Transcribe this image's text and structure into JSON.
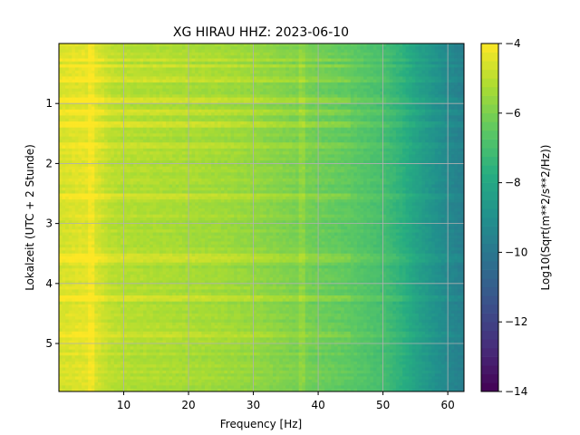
{
  "chart_data": {
    "type": "heatmap",
    "title": "XG HIRAU  HHZ: 2023-06-10",
    "xlabel": "Frequency [Hz]",
    "ylabel": "Lokalzeit (UTC + 2 Stunde)",
    "colorbar_label": "Log10(Sqrt(m**2/s**2/Hz))",
    "xlim": [
      0,
      62.5
    ],
    "ylim": [
      5.8,
      0.0
    ],
    "clim": [
      -14,
      -4
    ],
    "colormap": "viridis",
    "grid": true,
    "xticks": [
      10,
      20,
      30,
      40,
      50,
      60
    ],
    "yticks": [
      1,
      2,
      3,
      4,
      5
    ],
    "cbar_ticks": [
      -4,
      -6,
      -8,
      -10,
      -12,
      -14
    ],
    "xtick_labels": [
      "10",
      "20",
      "30",
      "40",
      "50",
      "60"
    ],
    "ytick_labels": [
      "1",
      "2",
      "3",
      "4",
      "5"
    ],
    "cbar_tick_labels": [
      "−4",
      "−6",
      "−8",
      "−10",
      "−12",
      "−14"
    ],
    "value_profile_vs_frequency": {
      "frequency_hz": [
        0,
        2,
        4,
        6,
        8,
        10,
        15,
        20,
        25,
        30,
        35,
        40,
        45,
        50,
        53,
        55,
        58,
        60,
        62.5
      ],
      "log10_psd": [
        -4.6,
        -4.5,
        -4.4,
        -4.6,
        -5.0,
        -5.1,
        -5.2,
        -5.3,
        -5.4,
        -5.6,
        -5.9,
        -6.2,
        -6.5,
        -7.0,
        -7.6,
        -8.2,
        -8.9,
        -9.3,
        -9.7
      ]
    },
    "bright_bands_hours": [
      0.28,
      0.38,
      0.6,
      0.95,
      1.15,
      1.35,
      1.7,
      2.55,
      3.55,
      3.62,
      4.25,
      4.85
    ],
    "notches_hz": [
      5.0,
      37.5
    ]
  }
}
